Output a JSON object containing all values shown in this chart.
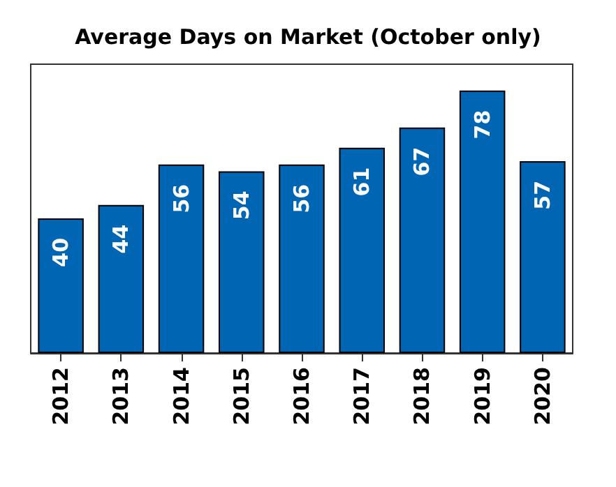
{
  "chart_data": {
    "type": "bar",
    "title": "Average Days on Market (October only)",
    "categories": [
      "2012",
      "2013",
      "2014",
      "2015",
      "2016",
      "2017",
      "2018",
      "2019",
      "2020"
    ],
    "values": [
      40,
      44,
      56,
      54,
      56,
      61,
      67,
      78,
      57
    ],
    "color": "#0066b3",
    "data_labels": true
  }
}
